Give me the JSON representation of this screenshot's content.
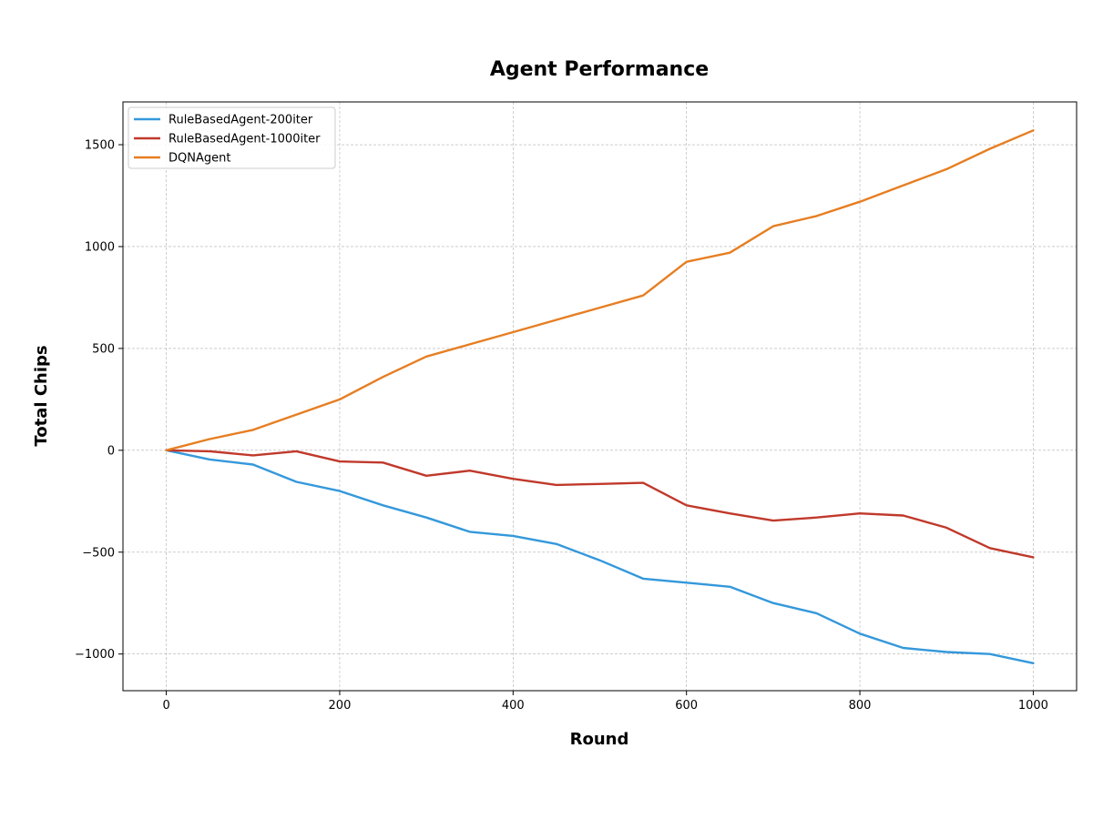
{
  "chart_data": {
    "type": "line",
    "title": "Agent Performance",
    "xlabel": "Round",
    "ylabel": "Total Chips",
    "xlim": [
      -50,
      1050
    ],
    "ylim": [
      -1180,
      1710
    ],
    "xticks": [
      0,
      200,
      400,
      600,
      800,
      1000
    ],
    "yticks": [
      -1000,
      -500,
      0,
      500,
      1000,
      1500
    ],
    "xtick_labels": [
      "0",
      "200",
      "400",
      "600",
      "800",
      "1000"
    ],
    "ytick_labels": [
      "−1000",
      "−500",
      "0",
      "500",
      "1000",
      "1500"
    ],
    "grid": true,
    "legend_position": "top-left",
    "x": [
      0,
      50,
      100,
      150,
      200,
      250,
      300,
      350,
      400,
      450,
      500,
      550,
      600,
      650,
      700,
      750,
      800,
      850,
      900,
      950,
      1000
    ],
    "series": [
      {
        "name": "RuleBasedAgent-200iter",
        "color": "#3498db",
        "values": [
          0,
          -45,
          -70,
          -155,
          -200,
          -270,
          -330,
          -400,
          -420,
          -460,
          -540,
          -630,
          -650,
          -670,
          -750,
          -800,
          -900,
          -970,
          -990,
          -1000,
          -1045
        ]
      },
      {
        "name": "RuleBasedAgent-1000iter",
        "color": "#c0392b",
        "values": [
          0,
          -5,
          -25,
          -5,
          -55,
          -60,
          -125,
          -100,
          -140,
          -170,
          -165,
          -160,
          -270,
          -310,
          -345,
          -330,
          -310,
          -320,
          -380,
          -480,
          -525
        ]
      },
      {
        "name": "DQNAgent",
        "color": "#e67e22",
        "values": [
          0,
          55,
          100,
          175,
          250,
          360,
          460,
          520,
          580,
          640,
          700,
          760,
          925,
          970,
          1100,
          1150,
          1220,
          1300,
          1380,
          1480,
          1570
        ]
      }
    ]
  }
}
